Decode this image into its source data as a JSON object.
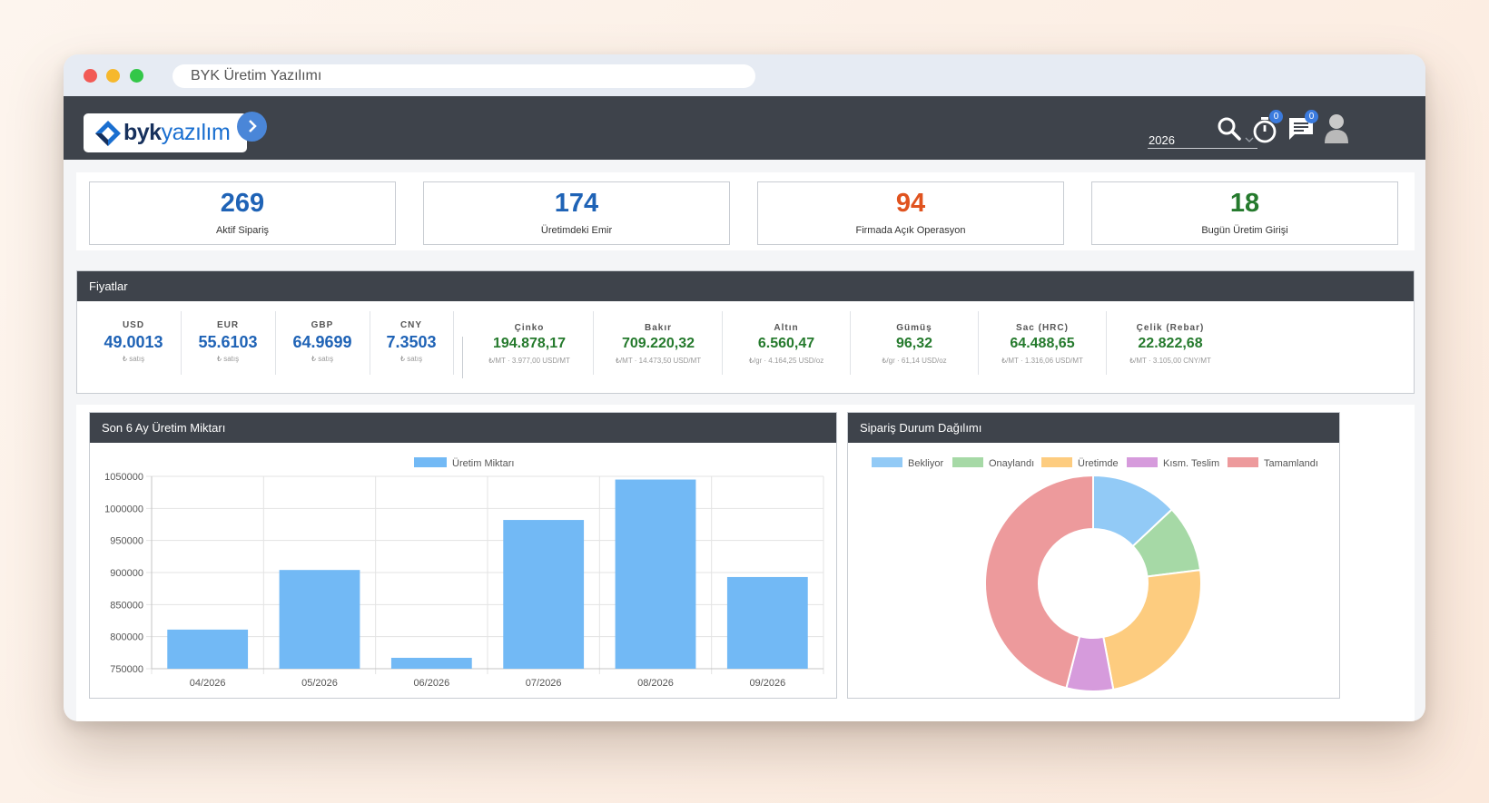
{
  "browser": {
    "url_title": "BYK Üretim Yazılımı"
  },
  "header": {
    "logo_text_bold": "byk",
    "logo_text_light": "yazılım",
    "year": "2026",
    "timer_badge": "0",
    "messages_badge": "0"
  },
  "stats": [
    {
      "value": "269",
      "label": "Aktif Sipariş",
      "color": "#1f63b6"
    },
    {
      "value": "174",
      "label": "Üretimdeki Emir",
      "color": "#1f63b6"
    },
    {
      "value": "94",
      "label": "Firmada Açık Operasyon",
      "color": "#e0531f"
    },
    {
      "value": "18",
      "label": "Bugün Üretim Girişi",
      "color": "#257a2d"
    }
  ],
  "prices": {
    "title": "Fiyatlar",
    "currencies": [
      {
        "code": "USD",
        "value": "49.0013",
        "sub": "₺ satış"
      },
      {
        "code": "EUR",
        "value": "55.6103",
        "sub": "₺ satış"
      },
      {
        "code": "GBP",
        "value": "64.9699",
        "sub": "₺ satış"
      },
      {
        "code": "CNY",
        "value": "7.3503",
        "sub": "₺ satış"
      }
    ],
    "metals": [
      {
        "code": "Çinko",
        "value": "194.878,17",
        "sub": "₺/MT · 3.977,00 USD/MT"
      },
      {
        "code": "Bakır",
        "value": "709.220,32",
        "sub": "₺/MT · 14.473,50 USD/MT"
      },
      {
        "code": "Altın",
        "value": "6.560,47",
        "sub": "₺/gr · 4.164,25 USD/oz"
      },
      {
        "code": "Gümüş",
        "value": "96,32",
        "sub": "₺/gr · 61,14 USD/oz"
      },
      {
        "code": "Sac (HRC)",
        "value": "64.488,65",
        "sub": "₺/MT · 1.316,06 USD/MT"
      },
      {
        "code": "Çelik (Rebar)",
        "value": "22.822,68",
        "sub": "₺/MT · 3.105,00 CNY/MT"
      }
    ]
  },
  "bar_panel": {
    "title": "Son 6 Ay Üretim Miktarı"
  },
  "pie_panel": {
    "title": "Sipariş Durum Dağılımı"
  },
  "chart_data": [
    {
      "type": "bar",
      "legend": "Üretim Miktarı",
      "categories": [
        "04/2026",
        "05/2026",
        "06/2026",
        "07/2026",
        "08/2026",
        "09/2026"
      ],
      "series": [
        {
          "name": "Üretim Miktarı",
          "values": [
            811000,
            904000,
            767000,
            982000,
            1045000,
            893000
          ],
          "color": "#72b9f5"
        }
      ],
      "ylim": [
        750000,
        1050000
      ],
      "yticks": [
        750000,
        800000,
        850000,
        900000,
        950000,
        1000000,
        1050000
      ],
      "grid": true,
      "legend_position": "top"
    },
    {
      "type": "pie",
      "donut": true,
      "labels": [
        "Bekliyor",
        "Onaylandı",
        "Üretimde",
        "Kısm. Teslim",
        "Tamamlandı"
      ],
      "values": [
        13,
        10,
        24,
        7,
        46
      ],
      "colors": [
        "#92caf6",
        "#a6d9a6",
        "#fdcc7f",
        "#d69bdc",
        "#ed9a9c"
      ],
      "legend_position": "top"
    }
  ]
}
